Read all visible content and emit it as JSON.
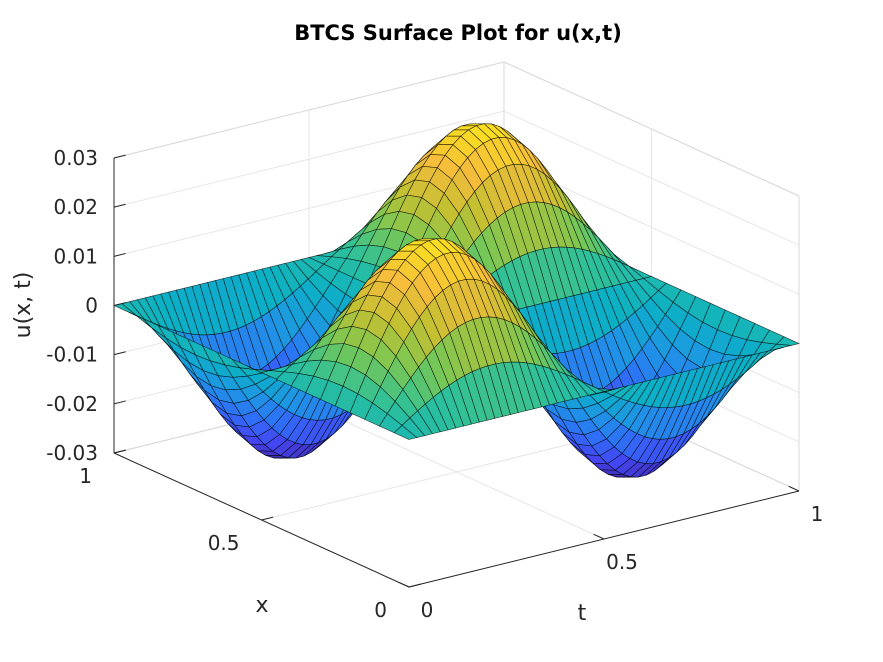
{
  "chart_data": {
    "type": "surface",
    "title": "BTCS Surface Plot for u(x,t)",
    "xlabel": "t",
    "ylabel": "x",
    "zlabel": "u(x, t)",
    "t_range": [
      0,
      1
    ],
    "x_range": [
      0,
      1
    ],
    "z_range": [
      -0.03,
      0.03
    ],
    "t_ticks": [
      "0",
      "0.5",
      "1"
    ],
    "x_ticks": [
      "0",
      "0.5",
      "1"
    ],
    "z_ticks": [
      "0.03",
      "0.02",
      "0.01",
      "0",
      "-0.01",
      "-0.02",
      "-0.03"
    ],
    "surface": {
      "amplitude": 0.029,
      "x_modes": 2,
      "t_modes": 2,
      "t_grid_points": 51,
      "x_grid_points": 21
    },
    "grid": true,
    "box": true,
    "colormap": "parula",
    "colormap_colors": [
      "#3e26a8",
      "#4446f1",
      "#2f6ff7",
      "#1e96e3",
      "#0cb0c5",
      "#2dc09b",
      "#77c755",
      "#c2c032",
      "#f6bc3b",
      "#f9e21f"
    ]
  }
}
